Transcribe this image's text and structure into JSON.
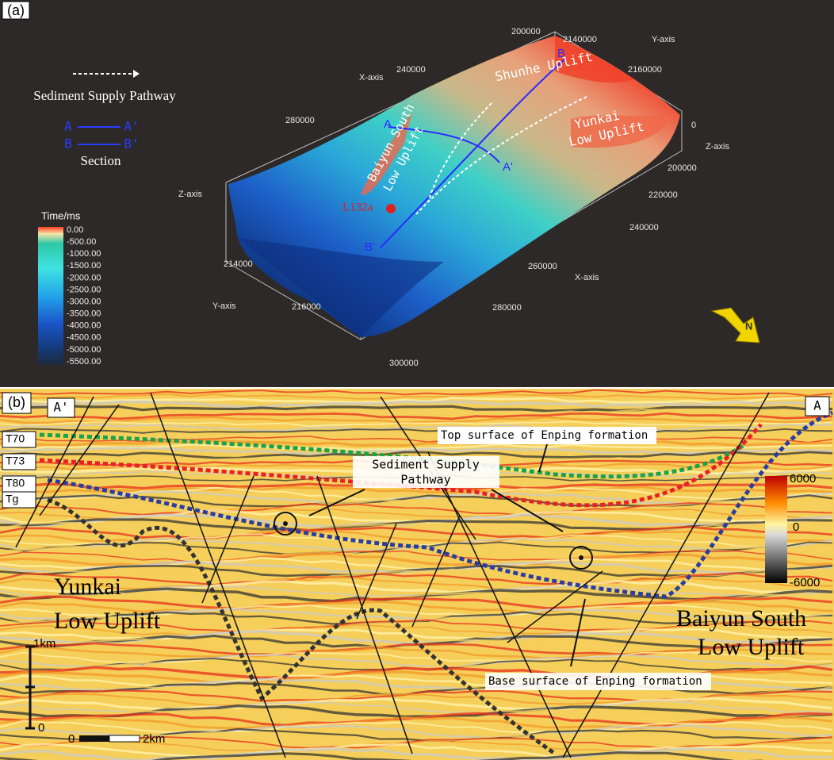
{
  "panel_a": {
    "label": "(a)",
    "legend": {
      "pathway": "Sediment Supply Pathway",
      "sections": [
        [
          "A",
          "A'"
        ],
        [
          "B",
          "B'"
        ]
      ],
      "section_title": "Section"
    },
    "colorbar": {
      "title": "Time/ms",
      "labels": [
        "0.00",
        "-500.00",
        "-1000.00",
        "-1500.00",
        "-2000.00",
        "-2500.00",
        "-3000.00",
        "-3500.00",
        "-4000.00",
        "-4500.00",
        "-5000.00",
        "-5500.00"
      ]
    },
    "axis_titles": [
      "X-axis",
      "Y-axis",
      "Z-axis",
      "Z-axis",
      "Y-axis",
      "X-axis"
    ],
    "ticks_top_x": [
      "200000",
      "240000",
      "280000"
    ],
    "ticks_top_y": [
      "2140000",
      "2160000"
    ],
    "ticks_z": [
      "0"
    ],
    "ticks_right_x": [
      "200000",
      "220000",
      "240000",
      "260000",
      "280000",
      "300000"
    ],
    "ticks_left_y": [
      "214000",
      "216000"
    ],
    "features": {
      "shunhe": "Shunhe Uplift",
      "baiyun": [
        "Baiyun South",
        "Low Uplift"
      ],
      "yunkai": [
        "Yunkai",
        "Low Uplift"
      ]
    },
    "section_ends": [
      "A",
      "A'",
      "B",
      "B'"
    ],
    "well": "L132a",
    "north": "N"
  },
  "panel_b": {
    "label": "(b)",
    "ends": [
      "A'",
      "A"
    ],
    "horizons": [
      "T70",
      "T73",
      "T80",
      "Tg"
    ],
    "top_surface": "Top surface of Enping formation",
    "pathway": [
      "Sediment Supply",
      "Pathway"
    ],
    "yunkai": [
      "Yunkai",
      "Low Uplift"
    ],
    "baiyun": [
      "Baiyun South",
      "Low Uplift"
    ],
    "base_surface": "Base surface of Enping formation",
    "vertical_scale": [
      "1km",
      "0"
    ],
    "horizontal_scale": [
      "0",
      "2km"
    ],
    "colorbar": [
      "6000",
      "0",
      "-6000"
    ]
  }
}
